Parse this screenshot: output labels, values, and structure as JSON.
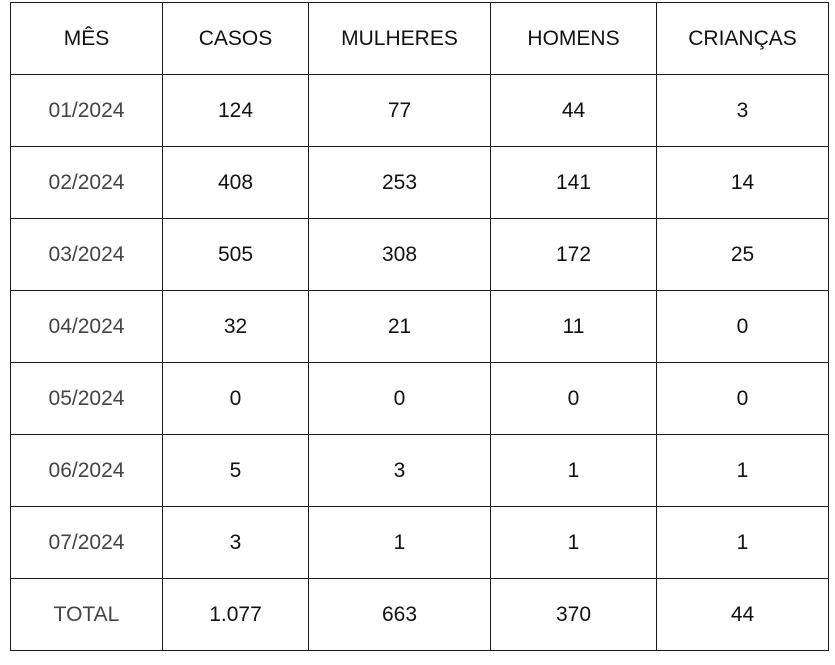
{
  "table": {
    "headers": [
      "MÊS",
      "CASOS",
      "MULHERES",
      "HOMENS",
      "CRIANÇAS"
    ],
    "rows": [
      [
        "01/2024",
        "124",
        "77",
        "44",
        "3"
      ],
      [
        "02/2024",
        "408",
        "253",
        "141",
        "14"
      ],
      [
        "03/2024",
        "505",
        "308",
        "172",
        "25"
      ],
      [
        "04/2024",
        "32",
        "21",
        "11",
        "0"
      ],
      [
        "05/2024",
        "0",
        "0",
        "0",
        "0"
      ],
      [
        "06/2024",
        "5",
        "3",
        "1",
        "1"
      ],
      [
        "07/2024",
        "3",
        "1",
        "1",
        "1"
      ],
      [
        "TOTAL",
        "1.077",
        "663",
        "370",
        "44"
      ]
    ]
  }
}
